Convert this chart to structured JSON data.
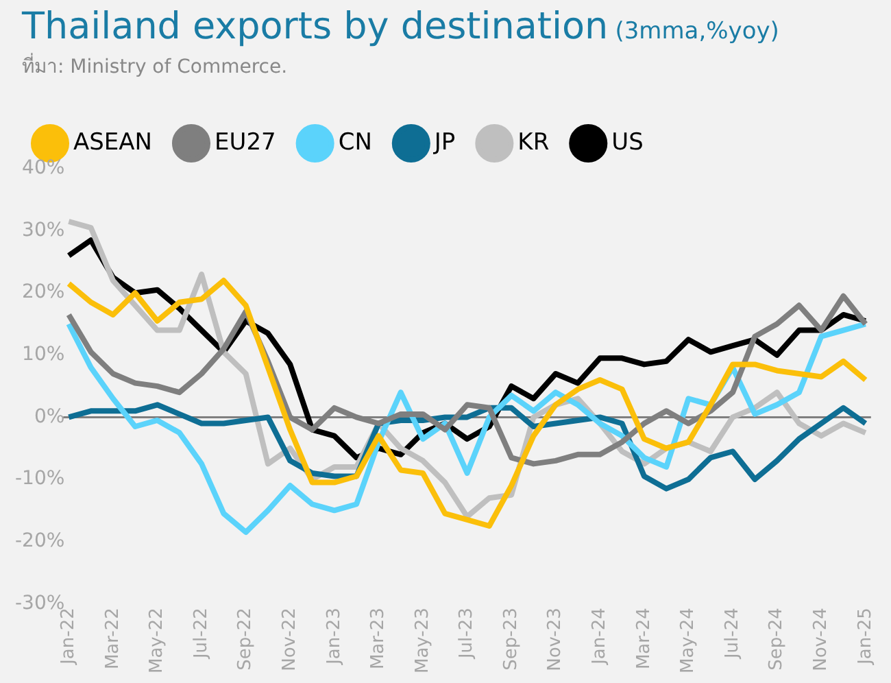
{
  "chart_data": {
    "type": "line",
    "title": "Thailand exports by destination",
    "subtitle": "(3mma,%yoy)",
    "annotations": [
      "ที่มา: Ministry of Commerce."
    ],
    "categories": [
      "Jan-22",
      null,
      "Mar-22",
      null,
      "May-22",
      null,
      "Jul-22",
      null,
      "Sep-22",
      null,
      "Nov-22",
      null,
      "Jan-23",
      null,
      "Mar-23",
      null,
      "May-23",
      null,
      "Jul-23",
      null,
      "Sep-23",
      null,
      "Nov-23",
      null,
      "Jan-24",
      null,
      "Mar-24",
      null,
      "May-24",
      null,
      "Jul-24",
      null,
      "Sep-24",
      null,
      "Nov-24",
      null,
      "Jan-25"
    ],
    "series": [
      {
        "name": "ASEAN",
        "color": "#fbbf0a",
        "values": [
          21.5,
          18.5,
          16.5,
          20,
          15.5,
          18.5,
          19,
          22,
          18,
          8,
          -2,
          -10.5,
          -10.5,
          -9.5,
          -3,
          -8.5,
          -9,
          -15.5,
          -16.5,
          -17.5,
          -11,
          -3,
          2,
          4.5,
          6,
          4.5,
          -3.5,
          -5,
          -4,
          2,
          8.5,
          8.5,
          7.5,
          7,
          6.5,
          9,
          6
        ]
      },
      {
        "name": "EU27",
        "color": "#7f7f7f",
        "values": [
          16.5,
          10.5,
          7,
          5.5,
          5,
          4,
          7,
          11,
          17,
          9,
          0,
          -2,
          1.5,
          0,
          -1,
          0.5,
          0.5,
          -2,
          2,
          1.5,
          -6.5,
          -7.5,
          -7,
          -6,
          -6,
          -4,
          -1,
          1,
          -1,
          1,
          4,
          13,
          15,
          18,
          14,
          19.5,
          15
        ]
      },
      {
        "name": "CN",
        "color": "#5bd3fb",
        "values": [
          15,
          8,
          3,
          -1.5,
          -0.5,
          -2.5,
          -7.5,
          -15.5,
          -18.5,
          -15,
          -11,
          -14,
          -15,
          -14,
          -4,
          4,
          -3.5,
          -1,
          -9,
          0,
          3.5,
          1,
          4,
          2,
          -1,
          -3,
          -6.5,
          -8,
          3,
          2,
          8,
          0.5,
          2,
          4,
          13,
          14,
          15
        ]
      },
      {
        "name": "JP",
        "color": "#0e6e94",
        "values": [
          0,
          1,
          1,
          1,
          2,
          0.5,
          -1,
          -1,
          -0.5,
          0,
          -7,
          -9,
          -9.5,
          -9.5,
          -1,
          -0.5,
          -0.5,
          0,
          0,
          1.5,
          1.5,
          -1.5,
          -1,
          -0.5,
          0,
          -1,
          -9.5,
          -11.5,
          -10,
          -6.5,
          -5.5,
          -10,
          -7,
          -3.5,
          -1,
          1.5,
          -1
        ]
      },
      {
        "name": "KR",
        "color": "#bfbfbf",
        "values": [
          31.5,
          30.5,
          22,
          18,
          14,
          14,
          23,
          10.5,
          7,
          -7.5,
          -5,
          -10,
          -8,
          -8,
          -1,
          -5,
          -7,
          -10.5,
          -16,
          -13,
          -12.5,
          0,
          2,
          3,
          -1,
          -5.5,
          -7.5,
          -5,
          -4,
          -5.5,
          0,
          1.5,
          4,
          -1,
          -3,
          -1,
          -2.5
        ]
      },
      {
        "name": "US",
        "color": "#000000",
        "values": [
          26,
          28.5,
          22.5,
          20,
          20.5,
          17.5,
          14,
          10.5,
          15.5,
          13.5,
          8.5,
          -2,
          -3,
          -6.5,
          -5,
          -6,
          -2.5,
          -1,
          -3.5,
          -1.5,
          5,
          3,
          7,
          5.5,
          9.5,
          9.5,
          8.5,
          9,
          12.5,
          10.5,
          11.5,
          12.5,
          10,
          14,
          14,
          16.5,
          15.5
        ]
      }
    ],
    "ylim": [
      -30,
      40
    ],
    "yticks": [
      {
        "value": -30,
        "label": "-30%"
      },
      {
        "value": -20,
        "label": "-20%"
      },
      {
        "value": -10,
        "label": "-10%"
      },
      {
        "value": 0,
        "label": "0%"
      },
      {
        "value": 10,
        "label": "10%"
      },
      {
        "value": 20,
        "label": "20%"
      },
      {
        "value": 30,
        "label": "30%"
      },
      {
        "value": 40,
        "label": "40%"
      }
    ],
    "ref_lines": [
      {
        "axis": "y",
        "value": 0,
        "color": "#7f7f7f"
      }
    ],
    "grid": false,
    "legend": "top left",
    "marker": "none",
    "line_style": "solid"
  }
}
